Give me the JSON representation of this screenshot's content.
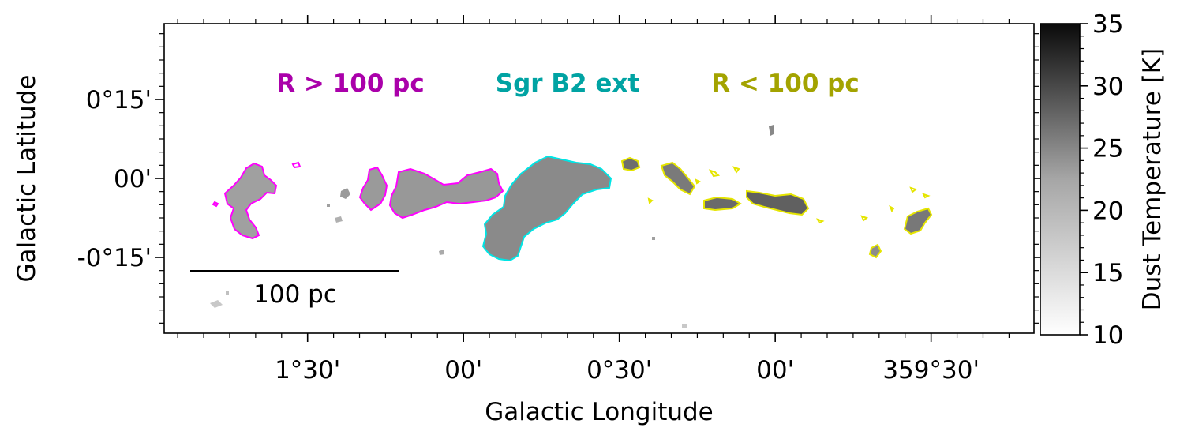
{
  "chart_data": {
    "type": "heatmap",
    "title": "",
    "xlabel": "Galactic Longitude",
    "ylabel": "Galactic Latitude",
    "xlim_deg": [
      1.96,
      359.17
    ],
    "ylim_deg": [
      0.49,
      -0.49
    ],
    "x_ticks": [
      {
        "deg": 1.5,
        "label": "1°30'"
      },
      {
        "deg": 1.0,
        "label": "00'"
      },
      {
        "deg": 0.5,
        "label": "0°30'"
      },
      {
        "deg": 0.0,
        "label": "00'"
      },
      {
        "deg": -0.5,
        "label": "359°30'"
      }
    ],
    "y_ticks": [
      {
        "deg": 0.25,
        "label": "0°15'"
      },
      {
        "deg": 0.0,
        "label": "00'"
      },
      {
        "deg": -0.25,
        "label": "-0°15'"
      }
    ],
    "region_labels": [
      {
        "text": "R > 100 pc",
        "color": "#aa00aa"
      },
      {
        "text": "Sgr B2 ext",
        "color": "#00a3a3"
      },
      {
        "text": "R < 100 pc",
        "color": "#a3a300"
      }
    ],
    "contour_colors": {
      "outer": "#ff00ff",
      "sgrb2": "#00e5e5",
      "inner": "#e5e500"
    },
    "scale_bar": {
      "label": "100 pc"
    },
    "colorbar": {
      "label": "Dust Temperature [K]",
      "range": [
        10,
        35
      ],
      "ticks": [
        10,
        15,
        20,
        25,
        30,
        35
      ],
      "colormap": "Greys"
    }
  }
}
